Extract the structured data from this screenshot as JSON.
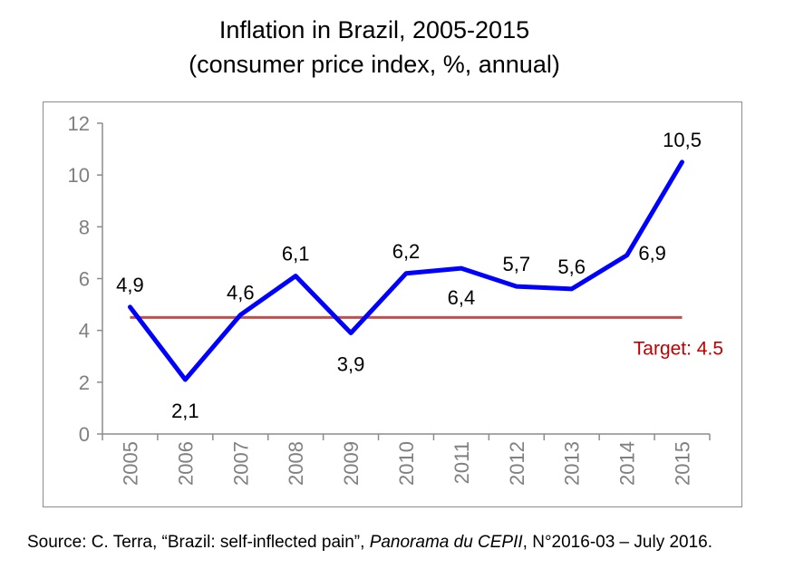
{
  "title_line1": "Inflation in Brazil, 2005-2015",
  "title_line2": "(consumer price index, %, annual)",
  "source": {
    "prefix": "Source: C. Terra, “Brazil: self-inflected pain”, ",
    "italic": "Panorama du CEPII",
    "suffix": ", N°2016-03 – July 2016."
  },
  "colors": {
    "series": "#0000ff",
    "target": "#c0504d",
    "target_text": "#c00000",
    "axis": "#8c8c8c",
    "tick_text": "#808080"
  },
  "chart_data": {
    "type": "line",
    "title": "Inflation in Brazil, 2005-2015",
    "subtitle": "(consumer price index, %, annual)",
    "xlabel": "",
    "ylabel": "",
    "categories": [
      "2005",
      "2006",
      "2007",
      "2008",
      "2009",
      "2010",
      "2011",
      "2012",
      "2013",
      "2014",
      "2015"
    ],
    "series": [
      {
        "values": [
          4.9,
          2.1,
          4.6,
          6.1,
          3.9,
          6.2,
          6.4,
          5.7,
          5.6,
          6.9,
          10.5
        ]
      }
    ],
    "data_labels": [
      "4,9",
      "2,1",
      "4,6",
      "6,1",
      "3,9",
      "6,2",
      "6,4",
      "5,7",
      "5,6",
      "6,9",
      "10,5"
    ],
    "data_label_placement": [
      "above",
      "below",
      "above",
      "above",
      "below",
      "above",
      "below",
      "above",
      "above",
      "below",
      "above"
    ],
    "target": {
      "value": 4.5,
      "label": "Target: 4.5"
    },
    "ylim": [
      0,
      12
    ],
    "yticks": [
      0,
      2,
      4,
      6,
      8,
      10,
      12
    ],
    "grid": false,
    "legend": "none",
    "x_tick_rotation": -90
  }
}
